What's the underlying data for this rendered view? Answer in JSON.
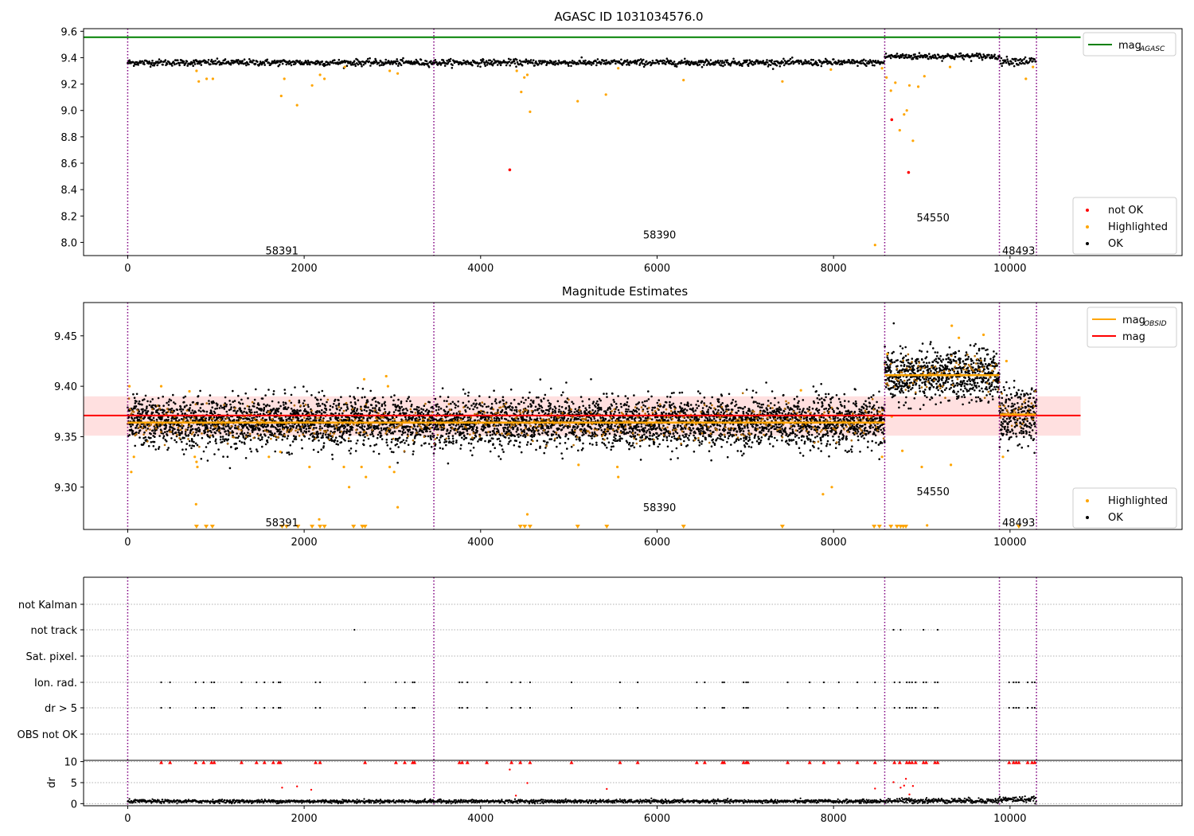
{
  "chart_data": [
    {
      "type": "scatter",
      "title": "AGASC ID 1031034576.0",
      "xlim": [
        -500,
        11950
      ],
      "ylim": [
        7.9,
        9.62
      ],
      "x_ticks": [
        0,
        2000,
        4000,
        6000,
        8000,
        10000
      ],
      "y_ticks": [
        8.0,
        8.2,
        8.4,
        8.6,
        8.8,
        9.0,
        9.2,
        9.4,
        9.6
      ],
      "y_tick_labels": [
        "8.0",
        "8.2",
        "8.4",
        "8.6",
        "8.8",
        "9.0",
        "9.2",
        "9.4",
        "9.6"
      ],
      "obsid_boundaries": [
        0,
        3470,
        8580,
        9880,
        10300
      ],
      "obsid_labels": [
        {
          "text": "58391",
          "x": 1730,
          "y": 7.94
        },
        {
          "text": "58390",
          "x": 6010,
          "y": 8.06
        },
        {
          "text": "54550",
          "x": 9110,
          "y": 8.19
        },
        {
          "text": "48493",
          "x": 10080,
          "y": 7.94
        }
      ],
      "mag_agasc": 9.555,
      "ok_segments": [
        {
          "x0": 0,
          "x1": 8580,
          "level": 9.363,
          "spread": 0.012
        },
        {
          "x0": 8580,
          "x1": 9880,
          "level": 9.41,
          "spread": 0.012
        },
        {
          "x0": 9880,
          "x1": 10300,
          "level": 9.375,
          "spread": 0.015
        }
      ],
      "highlighted_points": [
        [
          780,
          9.3
        ],
        [
          805,
          9.22
        ],
        [
          895,
          9.24
        ],
        [
          965,
          9.24
        ],
        [
          1740,
          9.11
        ],
        [
          1775,
          9.24
        ],
        [
          1920,
          9.04
        ],
        [
          2090,
          9.19
        ],
        [
          2180,
          9.27
        ],
        [
          2230,
          9.24
        ],
        [
          2460,
          9.33
        ],
        [
          2970,
          9.3
        ],
        [
          3060,
          9.28
        ],
        [
          4410,
          9.3
        ],
        [
          4460,
          9.14
        ],
        [
          4495,
          9.25
        ],
        [
          4530,
          9.27
        ],
        [
          4560,
          8.99
        ],
        [
          5100,
          9.07
        ],
        [
          5420,
          9.12
        ],
        [
          5560,
          9.32
        ],
        [
          6300,
          9.23
        ],
        [
          7420,
          9.22
        ],
        [
          7970,
          9.31
        ],
        [
          8470,
          7.98
        ],
        [
          8550,
          9.32
        ],
        [
          8600,
          9.25
        ],
        [
          8650,
          9.15
        ],
        [
          8700,
          9.21
        ],
        [
          8750,
          8.85
        ],
        [
          8800,
          8.97
        ],
        [
          8830,
          9.0
        ],
        [
          8860,
          9.19
        ],
        [
          8900,
          8.77
        ],
        [
          8960,
          9.18
        ],
        [
          9030,
          9.26
        ],
        [
          9320,
          9.33
        ],
        [
          10180,
          9.24
        ],
        [
          10260,
          9.33
        ]
      ],
      "notok_points": [
        [
          4330,
          8.55
        ],
        [
          8660,
          8.93
        ],
        [
          8850,
          8.53
        ]
      ],
      "legend": [
        {
          "label": "mag",
          "sub": "AGASC",
          "color": "#008000"
        }
      ],
      "legend2": [
        {
          "label": "not OK",
          "color": "#ff0000"
        },
        {
          "label": "Highlighted",
          "color": "#ffa500"
        },
        {
          "label": "OK",
          "color": "#000000"
        }
      ]
    },
    {
      "type": "scatter",
      "title": "Magnitude Estimates",
      "xlim": [
        -500,
        11950
      ],
      "ylim": [
        9.258,
        9.483
      ],
      "x_ticks": [
        0,
        2000,
        4000,
        6000,
        8000,
        10000
      ],
      "y_ticks": [
        9.3,
        9.35,
        9.4,
        9.45
      ],
      "y_tick_labels": [
        "9.30",
        "9.35",
        "9.40",
        "9.45"
      ],
      "obsid_boundaries": [
        0,
        3470,
        8580,
        9880,
        10300
      ],
      "obsid_labels": [
        {
          "text": "58391",
          "x": 1730,
          "y": 9.265
        },
        {
          "text": "58390",
          "x": 6010,
          "y": 9.28
        },
        {
          "text": "54550",
          "x": 9110,
          "y": 9.296
        },
        {
          "text": "48493",
          "x": 10080,
          "y": 9.265
        }
      ],
      "mag_band": [
        9.351,
        9.39
      ],
      "mag": 9.371,
      "mag_obsid_segments": [
        {
          "x0": 0,
          "x1": 8580,
          "value": 9.364
        },
        {
          "x0": 8580,
          "x1": 9880,
          "value": 9.411
        },
        {
          "x0": 9880,
          "x1": 10300,
          "value": 9.372
        }
      ],
      "ok_segments": [
        {
          "x0": 0,
          "x1": 8580,
          "level": 9.364,
          "spread": 0.012
        },
        {
          "x0": 8580,
          "x1": 9880,
          "level": 9.411,
          "spread": 0.012
        },
        {
          "x0": 9880,
          "x1": 10300,
          "level": 9.372,
          "spread": 0.014
        }
      ],
      "highlighted_points": [
        [
          20,
          9.4
        ],
        [
          40,
          9.315
        ],
        [
          70,
          9.33
        ],
        [
          380,
          9.4
        ],
        [
          700,
          9.395
        ],
        [
          760,
          9.33
        ],
        [
          775,
          9.283
        ],
        [
          780,
          9.325
        ],
        [
          790,
          9.32
        ],
        [
          1600,
          9.33
        ],
        [
          1730,
          9.335
        ],
        [
          2060,
          9.32
        ],
        [
          2170,
          9.268
        ],
        [
          2450,
          9.32
        ],
        [
          2510,
          9.3
        ],
        [
          2650,
          9.32
        ],
        [
          2680,
          9.407
        ],
        [
          2700,
          9.31
        ],
        [
          2930,
          9.41
        ],
        [
          2950,
          9.4
        ],
        [
          2970,
          9.32
        ],
        [
          3020,
          9.315
        ],
        [
          3060,
          9.28
        ],
        [
          4530,
          9.273
        ],
        [
          5110,
          9.322
        ],
        [
          5550,
          9.32
        ],
        [
          5560,
          9.31
        ],
        [
          7630,
          9.396
        ],
        [
          7880,
          9.293
        ],
        [
          7980,
          9.3
        ],
        [
          8550,
          9.33
        ],
        [
          8610,
          9.432
        ],
        [
          8660,
          9.37
        ],
        [
          8780,
          9.336
        ],
        [
          9000,
          9.32
        ],
        [
          9060,
          9.262
        ],
        [
          9330,
          9.322
        ],
        [
          9340,
          9.46
        ],
        [
          9420,
          9.448
        ],
        [
          9700,
          9.451
        ],
        [
          9880,
          9.38
        ],
        [
          9920,
          9.33
        ],
        [
          9960,
          9.425
        ]
      ],
      "below_axis_points": [
        [
          780,
          9.26
        ],
        [
          890,
          9.26
        ],
        [
          960,
          9.26
        ],
        [
          1750,
          9.26
        ],
        [
          1800,
          9.26
        ],
        [
          1930,
          9.26
        ],
        [
          2090,
          9.26
        ],
        [
          2180,
          9.26
        ],
        [
          2230,
          9.26
        ],
        [
          2560,
          9.26
        ],
        [
          2660,
          9.26
        ],
        [
          2690,
          9.26
        ],
        [
          4450,
          9.26
        ],
        [
          4500,
          9.26
        ],
        [
          4560,
          9.26
        ],
        [
          5100,
          9.26
        ],
        [
          5430,
          9.26
        ],
        [
          6300,
          9.26
        ],
        [
          7420,
          9.26
        ],
        [
          8460,
          9.26
        ],
        [
          8520,
          9.26
        ],
        [
          8650,
          9.26
        ],
        [
          8720,
          9.26
        ],
        [
          8760,
          9.26
        ],
        [
          8790,
          9.26
        ],
        [
          8820,
          9.26
        ],
        [
          10100,
          9.26
        ]
      ],
      "legend": [
        {
          "label": "mag",
          "sub": "OBSID",
          "color": "#ffa500"
        },
        {
          "label": "mag",
          "sub": "",
          "color": "#ff0000"
        }
      ],
      "legend2": [
        {
          "label": "Highlighted",
          "color": "#ffa500"
        },
        {
          "label": "OK",
          "color": "#000000"
        }
      ]
    },
    {
      "type": "scatter",
      "title": "",
      "xlim": [
        -500,
        11950
      ],
      "x_ticks": [
        0,
        2000,
        4000,
        6000,
        8000,
        10000
      ],
      "obsid_boundaries": [
        0,
        3470,
        8580,
        9880,
        10300
      ],
      "flag_rows": [
        "not Kalman",
        "not track",
        "Sat. pixel.",
        "Ion. rad.",
        "dr > 5",
        "OBS not OK"
      ],
      "flag_points": {
        "not track": [
          2570,
          8680,
          8760,
          9020,
          9180
        ],
        "Ion. rad.": [
          380,
          480,
          770,
          860,
          950,
          980,
          1290,
          1460,
          1550,
          1650,
          1710,
          1730,
          2130,
          2180,
          2690,
          3040,
          3140,
          3230,
          3250,
          3760,
          3790,
          3850,
          4070,
          4350,
          4450,
          4560,
          5030,
          5580,
          5780,
          6450,
          6540,
          6740,
          6760,
          6980,
          7010,
          7030,
          7480,
          7730,
          7890,
          8060,
          8270,
          8470,
          8690,
          8750,
          8830,
          8860,
          8890,
          8930,
          9020,
          9050,
          9150,
          9180,
          9990,
          10040,
          10070,
          10100,
          10200,
          10250,
          10280
        ],
        "dr > 5": [
          380,
          480,
          770,
          860,
          950,
          980,
          1290,
          1460,
          1550,
          1650,
          1710,
          1730,
          2130,
          2180,
          2690,
          3040,
          3140,
          3230,
          3250,
          3760,
          3790,
          3850,
          4070,
          4350,
          4450,
          4560,
          5030,
          5580,
          5780,
          6450,
          6540,
          6740,
          6760,
          6980,
          7010,
          7030,
          7480,
          7730,
          7890,
          8060,
          8270,
          8470,
          8690,
          8750,
          8830,
          8860,
          8890,
          8930,
          9020,
          9050,
          9150,
          9180,
          9990,
          10040,
          10070,
          10100,
          10200,
          10250,
          10280
        ]
      },
      "dr": {
        "ylabel": "dr",
        "ylim": [
          -0.5,
          10.3
        ],
        "y_ticks": [
          0,
          5,
          10
        ],
        "y_tick_labels": [
          "0",
          "5",
          "10"
        ],
        "clipped_points": [
          380,
          480,
          770,
          860,
          950,
          980,
          1290,
          1460,
          1550,
          1650,
          1710,
          1730,
          2130,
          2180,
          2690,
          3040,
          3140,
          3230,
          3250,
          3760,
          3790,
          3850,
          4070,
          4350,
          4450,
          4560,
          5030,
          5580,
          5780,
          6450,
          6540,
          6740,
          6760,
          6980,
          7010,
          7030,
          7480,
          7730,
          7890,
          8060,
          8270,
          8470,
          8690,
          8750,
          8830,
          8860,
          8890,
          8930,
          9020,
          9050,
          9150,
          9180,
          9990,
          10040,
          10070,
          10100,
          10200,
          10250,
          10280
        ],
        "red_points": [
          [
            1750,
            3.8
          ],
          [
            1920,
            4.1
          ],
          [
            2080,
            3.3
          ],
          [
            4330,
            8.1
          ],
          [
            4400,
            1.9
          ],
          [
            4530,
            4.9
          ],
          [
            5430,
            3.5
          ],
          [
            8470,
            3.6
          ],
          [
            8680,
            5.1
          ],
          [
            8760,
            3.8
          ],
          [
            8800,
            4.3
          ],
          [
            8820,
            5.9
          ],
          [
            8860,
            2.2
          ],
          [
            8900,
            4.2
          ]
        ],
        "black_segments": [
          {
            "x0": 0,
            "x1": 8580,
            "level": 0.55,
            "spread": 0.4
          },
          {
            "x0": 8580,
            "x1": 9880,
            "level": 0.7,
            "spread": 0.6
          },
          {
            "x0": 9880,
            "x1": 10300,
            "level": 1.0,
            "spread": 0.7
          }
        ]
      }
    }
  ]
}
